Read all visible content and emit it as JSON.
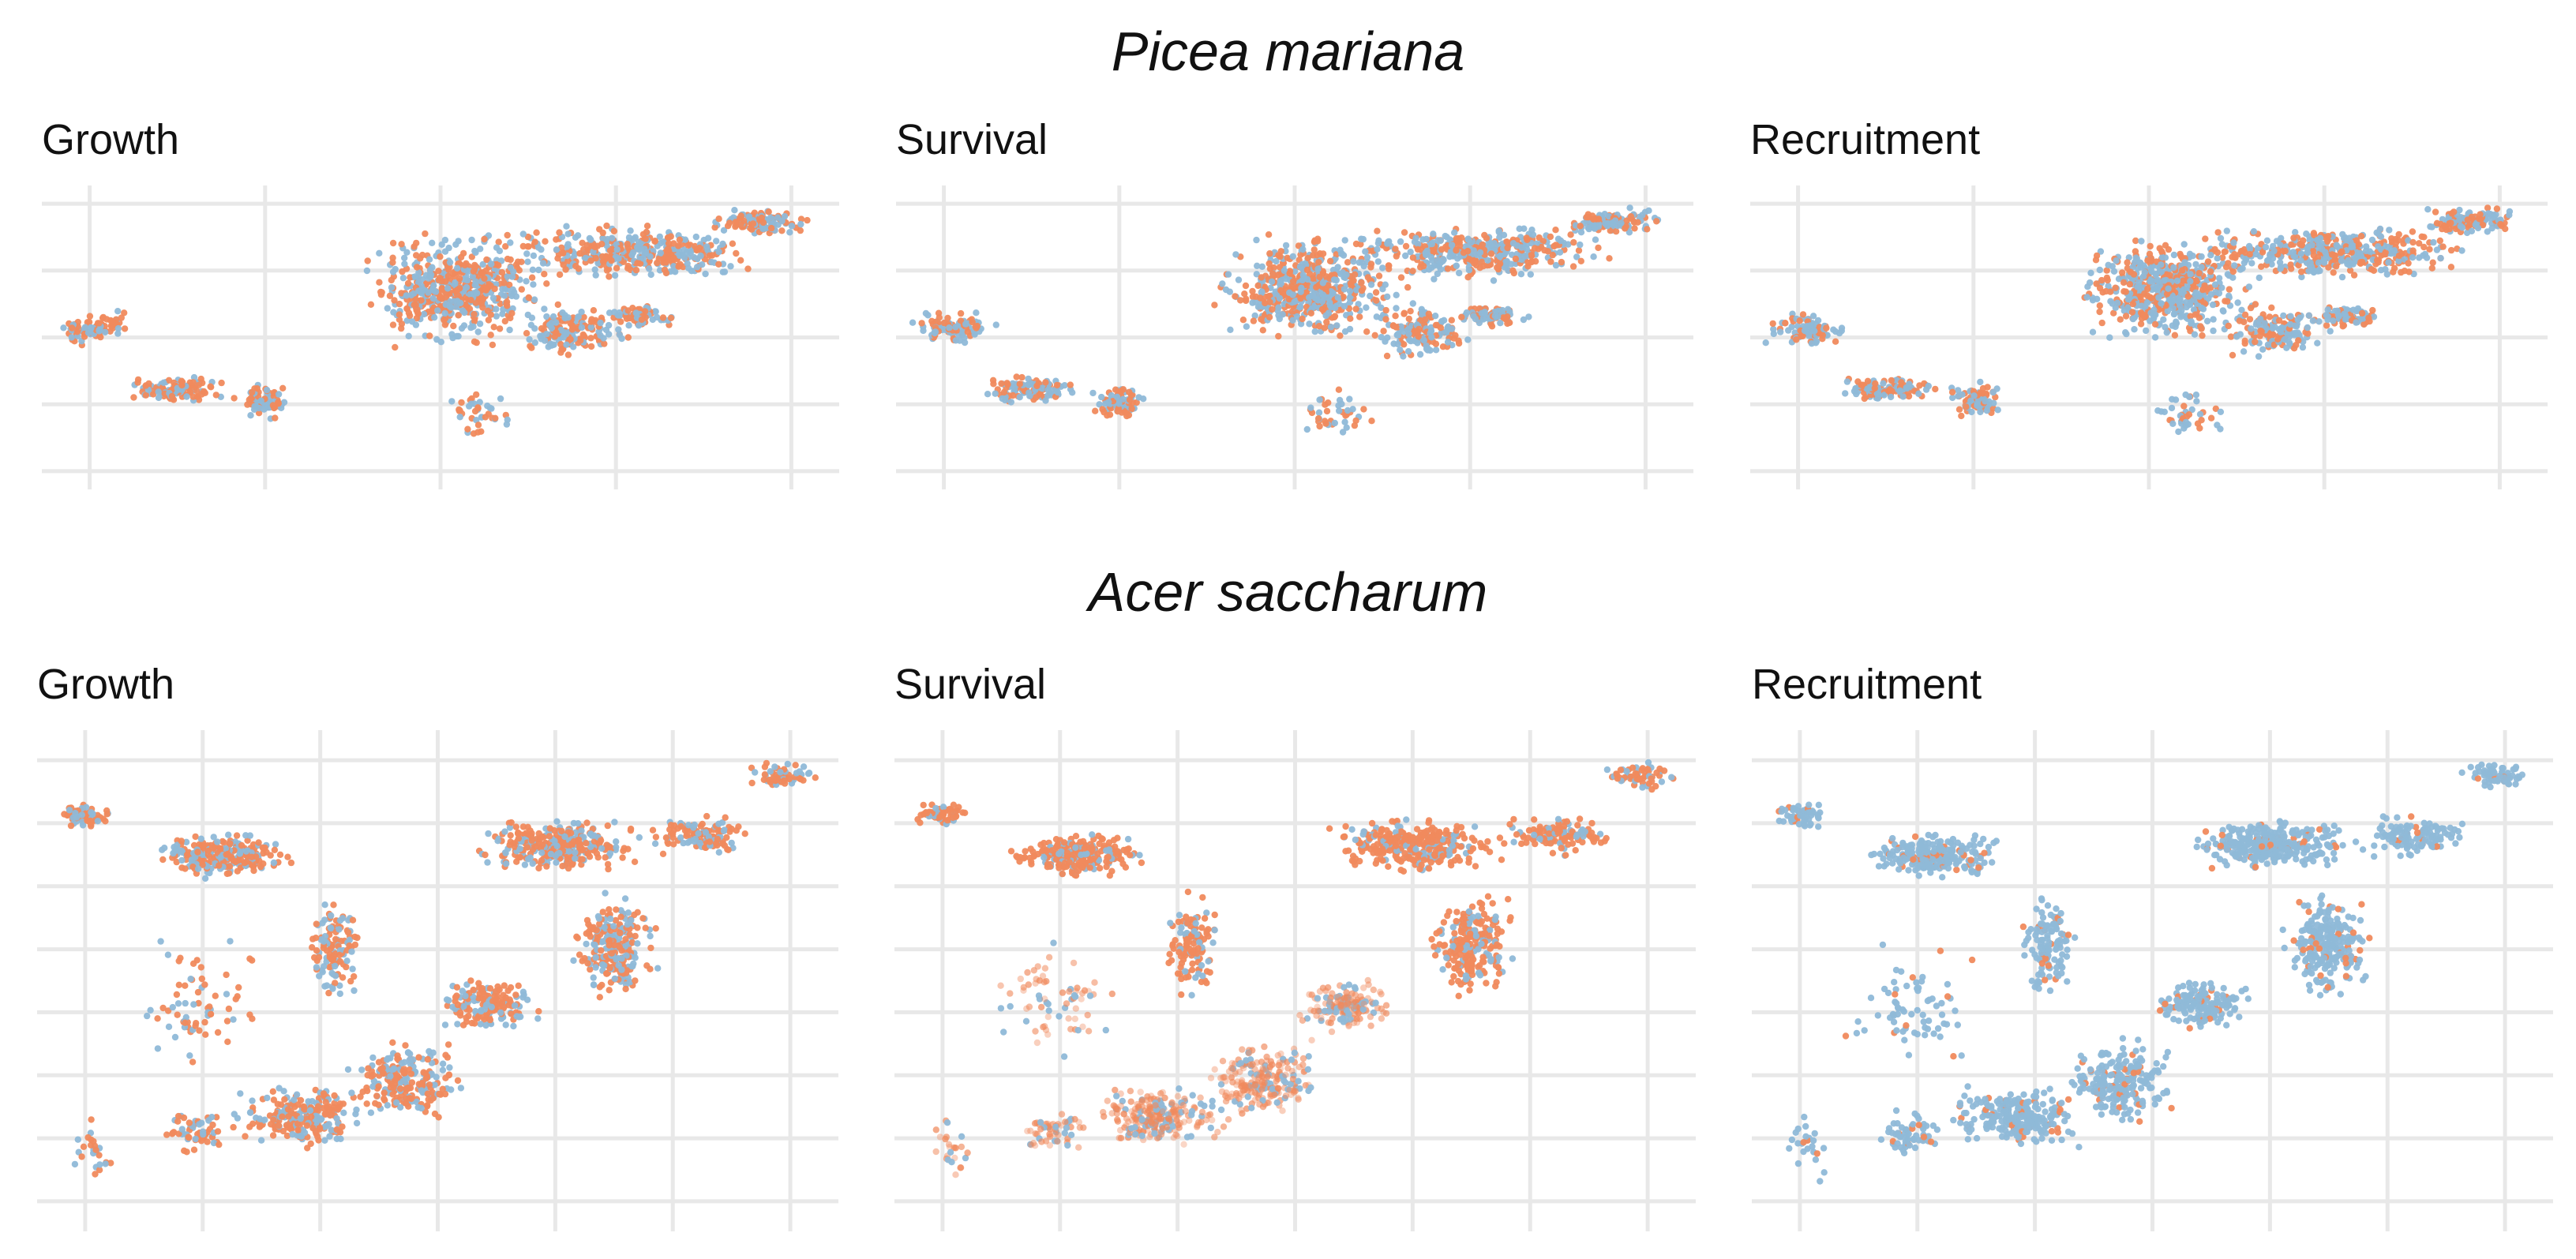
{
  "figure": {
    "rows": [
      {
        "species": "Picea mariana"
      },
      {
        "species": "Acer saccharum"
      }
    ],
    "colors": {
      "orange": "#F08A5D",
      "blue": "#8FB9D8",
      "grid": "#E8E8E8"
    }
  },
  "chart_data": [
    {
      "type": "scatter",
      "species": "Picea mariana",
      "title": "Growth",
      "x_ticks": 5,
      "y_ticks": 5,
      "tick_labels": "none",
      "grid": true,
      "values": "not printed",
      "orange_share": 0.55
    },
    {
      "type": "scatter",
      "species": "Picea mariana",
      "title": "Survival",
      "x_ticks": 5,
      "y_ticks": 5,
      "tick_labels": "none",
      "grid": true,
      "values": "not printed",
      "orange_share": 0.5
    },
    {
      "type": "scatter",
      "species": "Picea mariana",
      "title": "Recruitment",
      "x_ticks": 5,
      "y_ticks": 5,
      "tick_labels": "none",
      "grid": true,
      "values": "not printed",
      "orange_share": 0.45
    },
    {
      "type": "scatter",
      "species": "Acer saccharum",
      "title": "Growth",
      "x_ticks": 7,
      "y_ticks": 8,
      "tick_labels": "none",
      "grid": true,
      "values": "not printed",
      "orange_share": 0.6
    },
    {
      "type": "scatter",
      "species": "Acer saccharum",
      "title": "Survival",
      "x_ticks": 7,
      "y_ticks": 8,
      "tick_labels": "none",
      "grid": true,
      "values": "not printed",
      "orange_share": 0.75
    },
    {
      "type": "scatter",
      "species": "Acer saccharum",
      "title": "Recruitment",
      "x_ticks": 7,
      "y_ticks": 8,
      "tick_labels": "none",
      "grid": true,
      "values": "not printed",
      "orange_share": 0.12
    }
  ]
}
